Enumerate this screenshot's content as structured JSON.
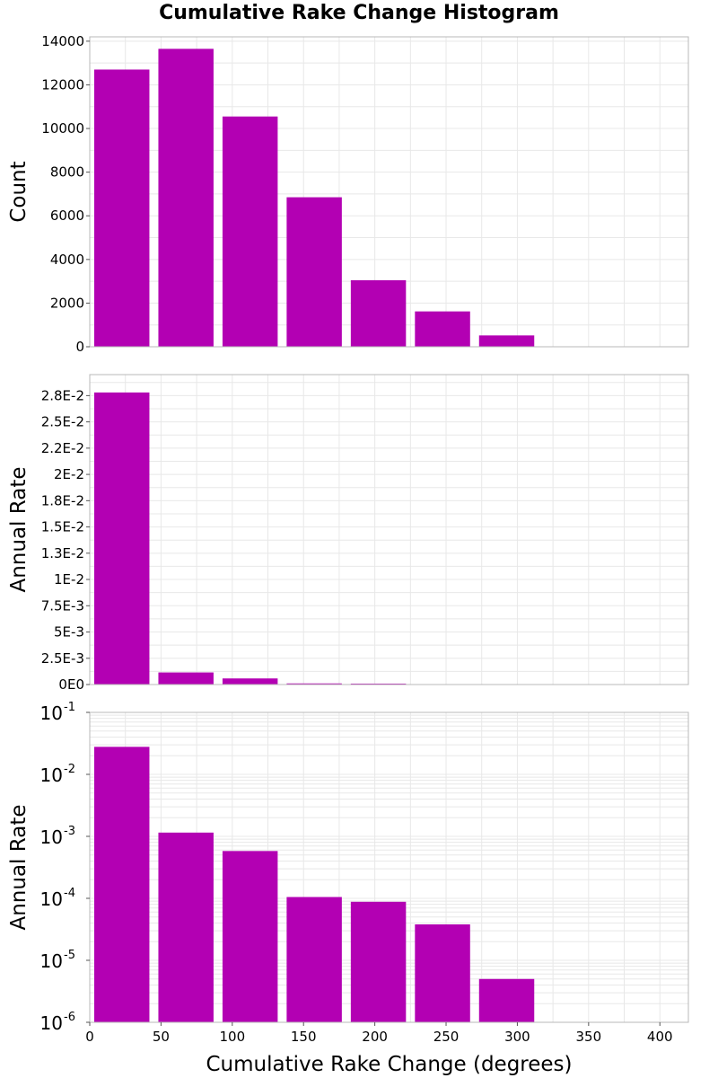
{
  "title": "Cumulative Rake Change Histogram",
  "colors": {
    "bar": "#b300b3",
    "grid": "#e8e8e8",
    "frame": "#b8b8b8"
  },
  "chart_data": [
    {
      "type": "bar",
      "title": "Cumulative Rake Change Histogram",
      "xlabel": "",
      "ylabel": "Count",
      "x_centers": [
        22.5,
        67.5,
        112.5,
        157.5,
        202.5,
        247.5,
        292.5
      ],
      "bin_width": 45,
      "values": [
        12700,
        13650,
        10550,
        6850,
        3050,
        1620,
        520
      ],
      "xlim": [
        0,
        420
      ],
      "ylim": [
        0,
        14200
      ],
      "y_ticks": [
        0,
        2000,
        4000,
        6000,
        8000,
        10000,
        12000,
        14000
      ],
      "y_tick_labels": [
        "0",
        "2000",
        "4000",
        "6000",
        "8000",
        "10000",
        "12000",
        "14000"
      ],
      "grid": true
    },
    {
      "type": "bar",
      "xlabel": "",
      "ylabel": "Annual Rate",
      "x_centers": [
        22.5,
        67.5,
        112.5,
        157.5,
        202.5,
        247.5,
        292.5
      ],
      "bin_width": 45,
      "values": [
        0.0278,
        0.00115,
        0.00058,
        0.000105,
        8.8e-05,
        3.8e-05,
        5e-06
      ],
      "xlim": [
        0,
        420
      ],
      "ylim": [
        0,
        0.0295
      ],
      "y_ticks": [
        0,
        0.0025,
        0.005,
        0.0075,
        0.01,
        0.0125,
        0.015,
        0.0175,
        0.02,
        0.0225,
        0.025,
        0.0275
      ],
      "y_tick_labels": [
        "0E0",
        "2.5E-3",
        "5E-3",
        "7.5E-3",
        "1E-2",
        "1.3E-2",
        "1.5E-2",
        "1.8E-2",
        "2E-2",
        "2.2E-2",
        "2.5E-2",
        "2.8E-2"
      ],
      "grid": true
    },
    {
      "type": "bar",
      "xlabel": "Cumulative Rake Change (degrees)",
      "ylabel": "Annual Rate",
      "y_scale": "log",
      "x_centers": [
        22.5,
        67.5,
        112.5,
        157.5,
        202.5,
        247.5,
        292.5
      ],
      "bin_width": 45,
      "values": [
        0.0278,
        0.00115,
        0.00058,
        0.000105,
        8.8e-05,
        3.8e-05,
        5e-06
      ],
      "xlim": [
        0,
        420
      ],
      "ylim": [
        1e-06,
        0.1
      ],
      "y_ticks": [
        1e-06,
        1e-05,
        0.0001,
        0.001,
        0.01,
        0.1
      ],
      "y_tick_labels": [
        {
          "base": "10",
          "exp": "-6"
        },
        {
          "base": "10",
          "exp": "-5"
        },
        {
          "base": "10",
          "exp": "-4"
        },
        {
          "base": "10",
          "exp": "-3"
        },
        {
          "base": "10",
          "exp": "-2"
        },
        {
          "base": "10",
          "exp": "-1"
        }
      ],
      "x_ticks": [
        0,
        50,
        100,
        150,
        200,
        250,
        300,
        350,
        400
      ],
      "x_tick_labels": [
        "0",
        "50",
        "100",
        "150",
        "200",
        "250",
        "300",
        "350",
        "400"
      ],
      "grid": true
    }
  ]
}
